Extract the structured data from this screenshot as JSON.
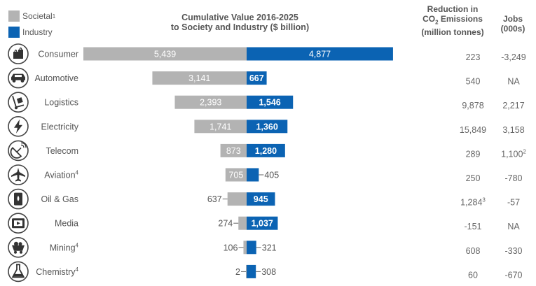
{
  "legend": {
    "societal_label": "Societal",
    "societal_sup": "1",
    "industry_label": "Industry"
  },
  "title_line1": "Cumulative Value 2016-2025",
  "title_line2": "to Society and Industry ($ billion)",
  "co2_header": {
    "line1": "Reduction in",
    "line2_pre": "CO",
    "line2_sub": "2",
    "line2_post": " Emissions",
    "line3": "(million tonnes)"
  },
  "jobs_header": {
    "line1": "Jobs",
    "line2": "(000s)"
  },
  "colors": {
    "societal": "#b3b3b3",
    "industry": "#0b63b3",
    "icon": "#333333"
  },
  "chart_data": {
    "type": "bar",
    "stacked": "diverging",
    "title": "Cumulative Value 2016-2025 to Society and Industry ($ billion)",
    "categories": [
      "Consumer",
      "Automotive",
      "Logistics",
      "Electricity",
      "Telecom",
      "Aviation",
      "Oil & Gas",
      "Media",
      "Mining",
      "Chemistry"
    ],
    "category_sups": [
      "",
      "",
      "",
      "",
      "",
      "4",
      "",
      "",
      "4",
      "4"
    ],
    "icons": [
      "shopping-bags-icon",
      "car-icon",
      "hand-truck-icon",
      "lightning-bolt-icon",
      "satellite-dish-icon",
      "airplane-icon",
      "oil-can-icon",
      "film-strip-icon",
      "mine-cart-icon",
      "flask-icon"
    ],
    "series": [
      {
        "name": "Societal",
        "direction": "left",
        "values": [
          5439,
          3141,
          2393,
          1741,
          873,
          705,
          637,
          274,
          106,
          2
        ],
        "labels": [
          "5,439",
          "3,141",
          "2,393",
          "1,741",
          "873",
          "705",
          "637",
          "274",
          "106",
          "2"
        ]
      },
      {
        "name": "Industry",
        "direction": "right",
        "values": [
          4877,
          667,
          1546,
          1360,
          1280,
          405,
          945,
          1037,
          321,
          308
        ],
        "labels": [
          "4,877",
          "667",
          "1,546",
          "1,360",
          "1,280",
          "405",
          "945",
          "1,037",
          "321",
          "308"
        ]
      }
    ],
    "co2_reduction": [
      "223",
      "540",
      "9,878",
      "15,849",
      "289",
      "250",
      "1,284",
      "-151",
      "608",
      "60"
    ],
    "co2_sups": [
      "",
      "",
      "",
      "",
      "",
      "",
      "3",
      "",
      "",
      ""
    ],
    "jobs": [
      "-3,249",
      "NA",
      "2,217",
      "3,158",
      "1,100",
      "-780",
      "-57",
      "NA",
      "-330",
      "-670"
    ],
    "jobs_sups": [
      "",
      "",
      "",
      "",
      "2",
      "",
      "",
      "",
      "",
      ""
    ]
  }
}
